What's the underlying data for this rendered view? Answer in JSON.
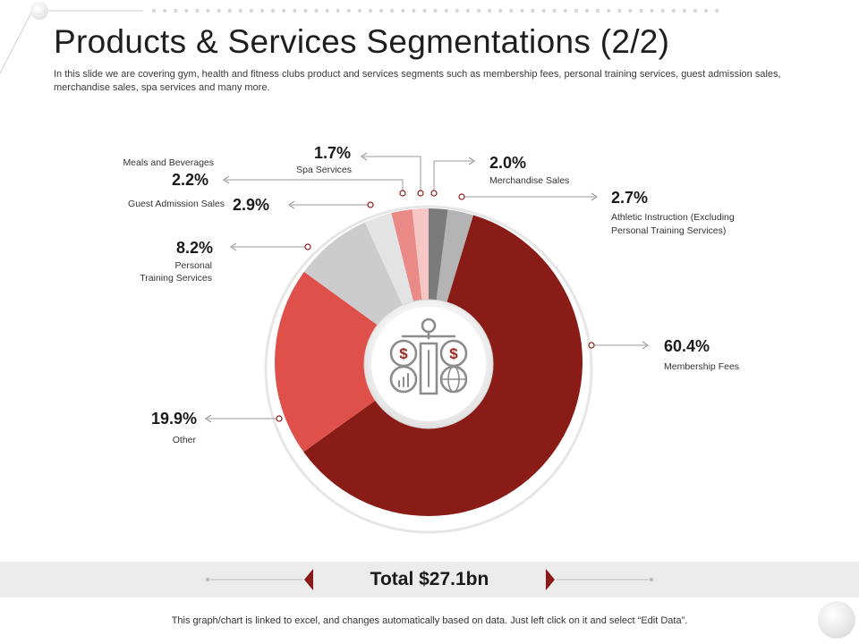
{
  "header": {
    "title": "Products & Services Segmentations (2/2)",
    "subtitle": "In this slide we are covering gym, health and fitness clubs product and services segments such as membership fees, personal training services, guest admission sales, merchandise sales, spa services and many more."
  },
  "chart_data": {
    "type": "pie",
    "style": "donut",
    "slices": [
      {
        "label": "Merchandise Sales",
        "value": 2.0,
        "display": "2.0%",
        "color": "#7b7b7b"
      },
      {
        "label": "Athletic Instruction (Excluding Personal Training Services)",
        "value": 2.7,
        "display": "2.7%",
        "color": "#b4b4b4"
      },
      {
        "label": "Membership Fees",
        "value": 60.4,
        "display": "60.4%",
        "color": "#8a1c17"
      },
      {
        "label": "Other",
        "value": 19.9,
        "display": "19.9%",
        "color": "#e0504a"
      },
      {
        "label": "Personal Training Services",
        "value": 8.2,
        "display": "8.2%",
        "color": "#cccccc"
      },
      {
        "label": "Guest Admission Sales",
        "value": 2.9,
        "display": "2.9%",
        "color": "#e3e3e3"
      },
      {
        "label": "Meals and Beverages",
        "value": 2.2,
        "display": "2.2%",
        "color": "#e98a86"
      },
      {
        "label": "Spa Services",
        "value": 1.7,
        "display": "1.7%",
        "color": "#f6c6c4"
      }
    ],
    "center_icon": "finance-scale-icon"
  },
  "total": {
    "label": "Total $27.1bn"
  },
  "footer": {
    "note": "This graph/chart is linked to excel, and changes automatically based on data. Just left click on it and select “Edit Data”."
  },
  "colors": {
    "accent": "#8a1c17",
    "arrow": "#8a1c17"
  }
}
